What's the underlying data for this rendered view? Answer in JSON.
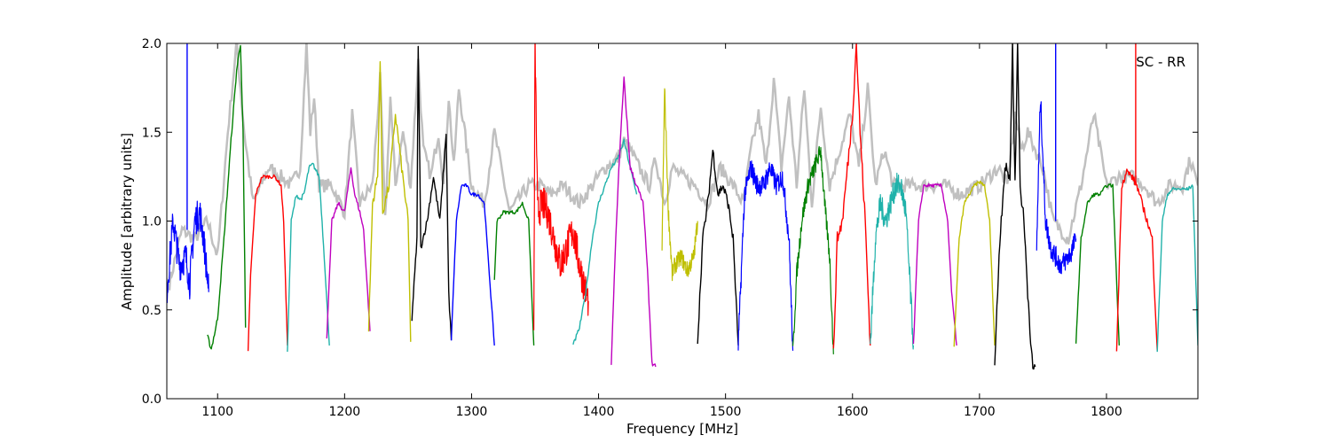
{
  "chart_data": {
    "type": "line",
    "title": "",
    "xlabel": "Frequency [MHz]",
    "ylabel": "Amplitude [arbitrary units]",
    "xlim": [
      1060,
      1872
    ],
    "ylim": [
      0.0,
      2.0
    ],
    "xticks": [
      1100,
      1200,
      1300,
      1400,
      1500,
      1600,
      1700,
      1800
    ],
    "yticks": [
      0.0,
      0.5,
      1.0,
      1.5,
      2.0
    ],
    "yticklabels": [
      "0.0",
      "0.5",
      "1.0",
      "1.5",
      "2.0"
    ],
    "grid": false,
    "annotation": "SC - RR",
    "background_color": "#c0c0c0",
    "colors": {
      "b": "#0000ff",
      "g": "#008000",
      "r": "#ff0000",
      "c": "#20b2aa",
      "m": "#bf00bf",
      "y": "#bfbf00",
      "k": "#000000"
    },
    "background": {
      "x": [
        1062,
        1072,
        1082,
        1092,
        1100,
        1108,
        1115,
        1121,
        1128,
        1140,
        1150,
        1158,
        1165,
        1170,
        1173,
        1176,
        1180,
        1190,
        1200,
        1206,
        1212,
        1222,
        1228,
        1232,
        1236,
        1240,
        1246,
        1252,
        1258,
        1262,
        1268,
        1274,
        1278,
        1282,
        1286,
        1290,
        1300,
        1310,
        1318,
        1330,
        1345,
        1355,
        1362,
        1372,
        1385,
        1395,
        1405,
        1415,
        1420,
        1425,
        1432,
        1440,
        1445,
        1452,
        1458,
        1466,
        1476,
        1486,
        1496,
        1506,
        1514,
        1520,
        1526,
        1532,
        1538,
        1544,
        1550,
        1556,
        1562,
        1568,
        1575,
        1582,
        1590,
        1598,
        1605,
        1612,
        1618,
        1625,
        1632,
        1640,
        1650,
        1660,
        1672,
        1685,
        1700,
        1715,
        1722,
        1728,
        1733,
        1738,
        1744,
        1750,
        1758,
        1770,
        1780,
        1790,
        1800,
        1810,
        1820,
        1830,
        1840,
        1850,
        1860,
        1866,
        1872
      ],
      "y": [
        0.65,
        0.95,
        0.9,
        1.0,
        0.8,
        1.5,
        2.0,
        1.5,
        1.1,
        1.3,
        1.25,
        1.2,
        1.3,
        2.0,
        1.5,
        1.7,
        1.2,
        1.2,
        1.05,
        1.6,
        1.1,
        1.2,
        1.8,
        1.0,
        1.7,
        1.2,
        1.5,
        1.2,
        1.9,
        1.4,
        1.25,
        1.5,
        1.2,
        1.7,
        1.3,
        1.75,
        1.2,
        1.1,
        1.5,
        1.05,
        1.2,
        1.2,
        1.15,
        1.2,
        1.1,
        1.2,
        1.3,
        1.35,
        1.45,
        1.4,
        1.3,
        1.2,
        1.35,
        1.1,
        1.3,
        1.25,
        1.2,
        1.1,
        1.3,
        1.2,
        1.1,
        1.4,
        1.6,
        1.3,
        1.8,
        1.3,
        1.7,
        1.2,
        1.75,
        1.1,
        1.65,
        1.2,
        1.4,
        1.6,
        1.3,
        1.75,
        1.2,
        1.4,
        1.2,
        1.2,
        1.2,
        1.2,
        1.2,
        1.15,
        1.2,
        1.3,
        1.2,
        1.6,
        1.4,
        1.5,
        1.4,
        1.3,
        1.0,
        0.9,
        1.2,
        1.6,
        1.2,
        1.25,
        1.25,
        1.2,
        1.1,
        1.2,
        1.2,
        1.35,
        1.2
      ]
    },
    "series": [
      {
        "color": "b",
        "x": [
          1060,
          1065,
          1070,
          1075,
          1078,
          1082,
          1086,
          1089,
          1093
        ],
        "y": [
          0.6,
          1.0,
          0.75,
          0.8,
          0.65,
          1.0,
          1.05,
          0.9,
          0.6
        ],
        "noise": 0.09
      },
      {
        "color": "b",
        "x": [
          1076,
          1076,
          1076
        ],
        "y": [
          0.95,
          2.0,
          0.95
        ],
        "noise": 0
      },
      {
        "color": "g",
        "x": [
          1092,
          1095,
          1100,
          1105,
          1110,
          1115,
          1118,
          1120,
          1122
        ],
        "y": [
          0.35,
          0.28,
          0.45,
          0.9,
          1.4,
          1.85,
          2.0,
          1.5,
          0.4
        ],
        "noise": 0.015
      },
      {
        "color": "r",
        "x": [
          1124,
          1126,
          1130,
          1135,
          1140,
          1145,
          1150,
          1152,
          1155
        ],
        "y": [
          0.26,
          0.7,
          1.15,
          1.25,
          1.25,
          1.25,
          1.2,
          1.0,
          0.3
        ],
        "noise": 0.01
      },
      {
        "color": "c",
        "x": [
          1155,
          1158,
          1162,
          1165,
          1168,
          1172,
          1175,
          1180,
          1184,
          1188
        ],
        "y": [
          0.27,
          1.0,
          1.15,
          1.12,
          1.15,
          1.3,
          1.32,
          1.25,
          0.8,
          0.3
        ],
        "noise": 0.012
      },
      {
        "color": "m",
        "x": [
          1186,
          1190,
          1195,
          1200,
          1205,
          1208,
          1212,
          1215,
          1220
        ],
        "y": [
          0.35,
          1.0,
          1.1,
          1.05,
          1.3,
          1.15,
          1.05,
          0.95,
          0.38
        ],
        "noise": 0.012
      },
      {
        "color": "y",
        "x": [
          1219,
          1222,
          1226,
          1228,
          1230,
          1235,
          1240,
          1245,
          1250,
          1252
        ],
        "y": [
          0.4,
          1.1,
          1.25,
          1.9,
          1.05,
          1.2,
          1.6,
          1.3,
          1.0,
          0.32
        ],
        "noise": 0.03
      },
      {
        "color": "k",
        "x": [
          1253,
          1257,
          1258,
          1260,
          1265,
          1270,
          1275,
          1280,
          1282,
          1284
        ],
        "y": [
          0.45,
          0.9,
          2.0,
          0.85,
          1.0,
          1.25,
          1.0,
          1.5,
          0.6,
          0.33
        ],
        "noise": 0.02
      },
      {
        "color": "b",
        "x": [
          1284,
          1288,
          1292,
          1296,
          1300,
          1305,
          1310,
          1314,
          1318
        ],
        "y": [
          0.33,
          1.0,
          1.2,
          1.2,
          1.15,
          1.15,
          1.1,
          0.7,
          0.3
        ],
        "noise": 0.01
      },
      {
        "color": "g",
        "x": [
          1318,
          1320,
          1325,
          1330,
          1335,
          1340,
          1345,
          1349
        ],
        "y": [
          0.67,
          1.0,
          1.05,
          1.05,
          1.05,
          1.1,
          1.0,
          0.3
        ],
        "noise": 0.01
      },
      {
        "color": "r",
        "x": [
          1349,
          1350,
          1352,
          1356,
          1360,
          1365,
          1370,
          1375,
          1380,
          1385,
          1390,
          1392
        ],
        "y": [
          0.3,
          2.0,
          1.05,
          1.1,
          1.05,
          0.9,
          0.75,
          0.85,
          0.95,
          0.75,
          0.6,
          0.55
        ],
        "noise": 0.1
      },
      {
        "color": "c",
        "x": [
          1380,
          1385,
          1390,
          1395,
          1400,
          1405,
          1410,
          1415,
          1420,
          1425,
          1430
        ],
        "y": [
          0.3,
          0.4,
          0.6,
          0.9,
          1.1,
          1.2,
          1.3,
          1.35,
          1.45,
          1.3,
          1.15
        ],
        "noise": 0.012
      },
      {
        "color": "m",
        "x": [
          1410,
          1413,
          1416,
          1420,
          1425,
          1430,
          1435,
          1438,
          1442,
          1445
        ],
        "y": [
          0.2,
          0.8,
          1.3,
          1.8,
          1.3,
          1.2,
          1.1,
          0.8,
          0.2,
          0.18
        ],
        "noise": 0.015
      },
      {
        "color": "y",
        "x": [
          1450,
          1452,
          1455,
          1458,
          1460,
          1465,
          1470,
          1475,
          1478
        ],
        "y": [
          0.85,
          1.75,
          1.05,
          0.7,
          0.75,
          0.8,
          0.72,
          0.8,
          1.0
        ],
        "noise": 0.05
      },
      {
        "color": "k",
        "x": [
          1478,
          1482,
          1486,
          1490,
          1494,
          1498,
          1502,
          1506,
          1510
        ],
        "y": [
          0.32,
          0.9,
          1.1,
          1.4,
          1.15,
          1.2,
          1.1,
          0.9,
          0.3
        ],
        "noise": 0.03
      },
      {
        "color": "b",
        "x": [
          1510,
          1515,
          1520,
          1525,
          1530,
          1535,
          1540,
          1545,
          1550,
          1553
        ],
        "y": [
          0.3,
          1.15,
          1.3,
          1.2,
          1.2,
          1.3,
          1.2,
          1.25,
          0.9,
          0.27
        ],
        "noise": 0.06
      },
      {
        "color": "g",
        "x": [
          1553,
          1556,
          1560,
          1565,
          1570,
          1575,
          1578,
          1582,
          1585
        ],
        "y": [
          0.25,
          0.7,
          1.0,
          1.2,
          1.3,
          1.4,
          1.1,
          0.8,
          0.25
        ],
        "noise": 0.05
      },
      {
        "color": "r",
        "x": [
          1585,
          1588,
          1592,
          1596,
          1600,
          1603,
          1606,
          1610,
          1614
        ],
        "y": [
          0.25,
          0.9,
          1.0,
          1.3,
          1.6,
          2.0,
          1.5,
          1.0,
          0.3
        ],
        "noise": 0.04
      },
      {
        "color": "c",
        "x": [
          1614,
          1618,
          1622,
          1626,
          1630,
          1634,
          1638,
          1642,
          1648
        ],
        "y": [
          0.3,
          0.9,
          1.1,
          1.0,
          1.1,
          1.2,
          1.2,
          1.05,
          0.3
        ],
        "noise": 0.07
      },
      {
        "color": "m",
        "x": [
          1648,
          1652,
          1656,
          1660,
          1665,
          1670,
          1675,
          1678,
          1682
        ],
        "y": [
          0.3,
          1.0,
          1.2,
          1.2,
          1.2,
          1.2,
          1.0,
          0.6,
          0.3
        ],
        "noise": 0.01
      },
      {
        "color": "y",
        "x": [
          1680,
          1684,
          1688,
          1692,
          1696,
          1700,
          1704,
          1708,
          1712
        ],
        "y": [
          0.3,
          0.9,
          1.1,
          1.15,
          1.2,
          1.22,
          1.2,
          1.0,
          0.3
        ],
        "noise": 0.01
      },
      {
        "color": "k",
        "x": [
          1712,
          1716,
          1720,
          1724,
          1726,
          1728,
          1730,
          1732,
          1735,
          1738,
          1742,
          1744
        ],
        "y": [
          0.2,
          0.9,
          1.3,
          1.25,
          2.0,
          1.2,
          2.0,
          1.2,
          1.0,
          0.6,
          0.15,
          0.18
        ],
        "noise": 0.04
      },
      {
        "color": "b",
        "x": [
          1745,
          1748,
          1752,
          1756,
          1760,
          1764,
          1768,
          1772,
          1776
        ],
        "y": [
          0.85,
          1.7,
          1.0,
          0.85,
          0.8,
          0.75,
          0.78,
          0.82,
          0.9
        ],
        "noise": 0.06
      },
      {
        "color": "b",
        "x": [
          1760,
          1760,
          1760
        ],
        "y": [
          1.0,
          2.0,
          1.0
        ],
        "noise": 0
      },
      {
        "color": "g",
        "x": [
          1776,
          1780,
          1785,
          1790,
          1795,
          1800,
          1805,
          1810
        ],
        "y": [
          0.32,
          0.9,
          1.1,
          1.15,
          1.15,
          1.2,
          1.2,
          0.3
        ],
        "noise": 0.01
      },
      {
        "color": "r",
        "x": [
          1808,
          1812,
          1816,
          1820,
          1824,
          1828,
          1832,
          1836,
          1840
        ],
        "y": [
          0.26,
          1.2,
          1.28,
          1.25,
          1.2,
          1.1,
          1.0,
          0.9,
          0.27
        ],
        "noise": 0.02
      },
      {
        "color": "r",
        "x": [
          1823,
          1823,
          1823
        ],
        "y": [
          1.2,
          2.0,
          1.2
        ],
        "noise": 0
      },
      {
        "color": "c",
        "x": [
          1840,
          1844,
          1848,
          1852,
          1856,
          1860,
          1864,
          1868,
          1872
        ],
        "y": [
          0.27,
          1.0,
          1.15,
          1.18,
          1.18,
          1.18,
          1.18,
          1.2,
          0.3
        ],
        "noise": 0.01
      }
    ]
  }
}
